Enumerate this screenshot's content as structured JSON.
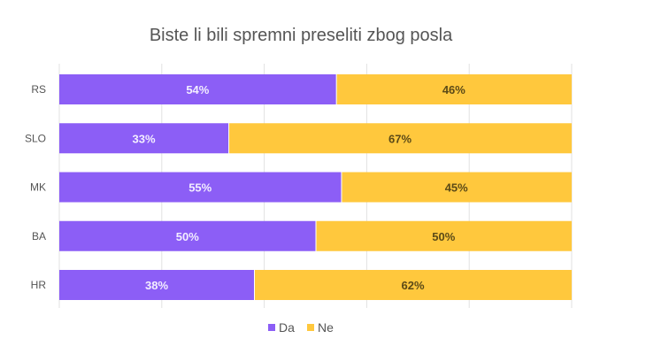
{
  "chart_data": {
    "type": "bar",
    "stacked": true,
    "orientation": "horizontal",
    "percent_stacked": true,
    "title": "Biste li bili spremni preseliti zbog posla",
    "categories": [
      "RS",
      "SLO",
      "MK",
      "BA",
      "HR"
    ],
    "series": [
      {
        "name": "Da",
        "values": [
          54,
          33,
          55,
          50,
          38
        ],
        "color": "#8C5EF6",
        "label_color": "#F3EEFF"
      },
      {
        "name": "Ne",
        "values": [
          46,
          67,
          45,
          50,
          62
        ],
        "color": "#FFC83D",
        "label_color": "#5B4A17"
      }
    ],
    "data_labels": [
      [
        "54%",
        "33%",
        "55%",
        "50%",
        "38%"
      ],
      [
        "46%",
        "67%",
        "45%",
        "50%",
        "62%"
      ]
    ],
    "xlim": [
      0,
      100
    ],
    "x_gridlines": [
      0,
      20,
      40,
      60,
      80,
      100
    ],
    "grid": true,
    "legend": [
      "Da",
      "Ne"
    ],
    "legend_position": "bottom",
    "xlabel": "",
    "ylabel": ""
  }
}
